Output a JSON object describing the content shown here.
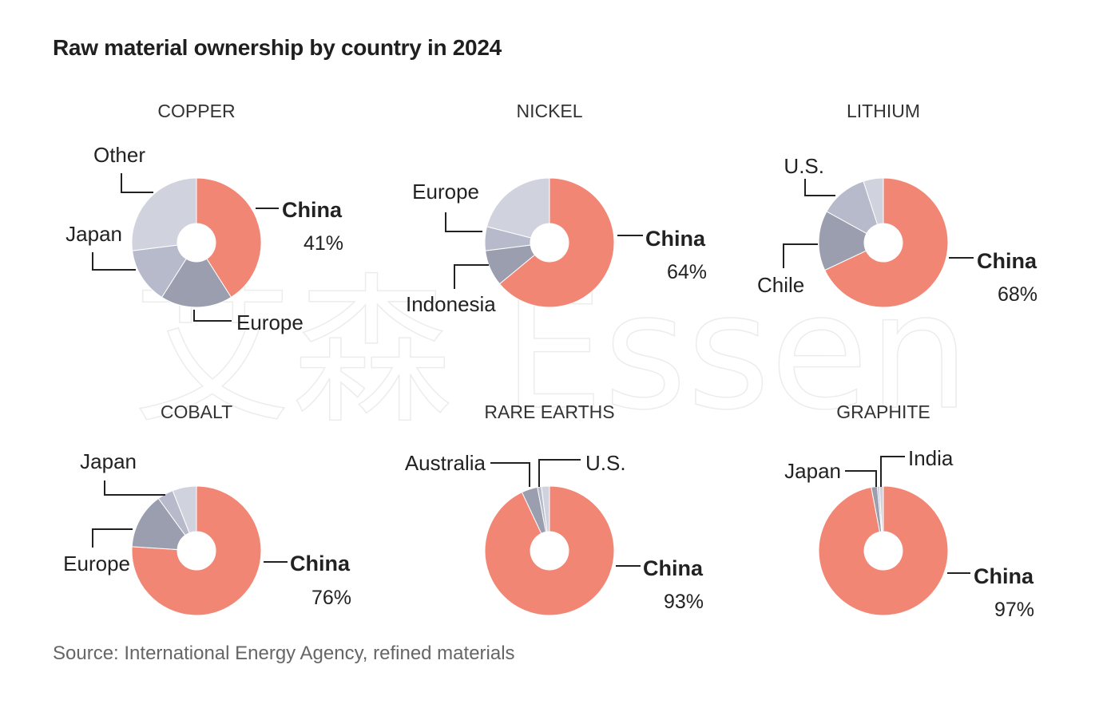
{
  "title": "Raw material ownership by country in 2024",
  "source": "Source: International Energy Agency, refined materials",
  "watermark": "艾森 Essen",
  "colors": {
    "china": "#f28675",
    "europe": "#9a9eae",
    "japan": "#b7bacb",
    "other": "#d0d3dd",
    "line": "#222222"
  },
  "chart_data": [
    {
      "type": "pie",
      "title": "COPPER",
      "series": [
        {
          "name": "China",
          "value": 41,
          "label": "41%",
          "color": "#f28675"
        },
        {
          "name": "Europe",
          "value": 18,
          "color": "#9a9eae"
        },
        {
          "name": "Japan",
          "value": 14,
          "color": "#b7bacb"
        },
        {
          "name": "Other",
          "value": 27,
          "color": "#d0d3dd"
        }
      ]
    },
    {
      "type": "pie",
      "title": "NICKEL",
      "series": [
        {
          "name": "China",
          "value": 64,
          "label": "64%",
          "color": "#f28675"
        },
        {
          "name": "Indonesia",
          "value": 9,
          "color": "#9a9eae"
        },
        {
          "name": "Europe",
          "value": 6,
          "color": "#b7bacb"
        },
        {
          "name": "",
          "value": 21,
          "color": "#d0d3dd"
        }
      ]
    },
    {
      "type": "pie",
      "title": "LITHIUM",
      "series": [
        {
          "name": "China",
          "value": 68,
          "label": "68%",
          "color": "#f28675"
        },
        {
          "name": "Chile",
          "value": 15,
          "color": "#9a9eae"
        },
        {
          "name": "U.S.",
          "value": 12,
          "color": "#b7bacb"
        },
        {
          "name": "",
          "value": 5,
          "color": "#d0d3dd"
        }
      ]
    },
    {
      "type": "pie",
      "title": "COBALT",
      "series": [
        {
          "name": "China",
          "value": 76,
          "label": "76%",
          "color": "#f28675"
        },
        {
          "name": "Europe",
          "value": 14,
          "color": "#9a9eae"
        },
        {
          "name": "Japan",
          "value": 4,
          "color": "#b7bacb"
        },
        {
          "name": "",
          "value": 6,
          "color": "#d0d3dd"
        }
      ]
    },
    {
      "type": "pie",
      "title": "RARE EARTHS",
      "series": [
        {
          "name": "China",
          "value": 93,
          "label": "93%",
          "color": "#f28675"
        },
        {
          "name": "Australia",
          "value": 4,
          "color": "#9a9eae"
        },
        {
          "name": "",
          "value": 1,
          "color": "#b7bacb"
        },
        {
          "name": "U.S.",
          "value": 2,
          "color": "#d0d3dd"
        }
      ]
    },
    {
      "type": "pie",
      "title": "GRAPHITE",
      "series": [
        {
          "name": "China",
          "value": 97,
          "label": "97%",
          "color": "#f28675"
        },
        {
          "name": "Japan",
          "value": 1.5,
          "color": "#9a9eae"
        },
        {
          "name": "",
          "value": 0.5,
          "color": "#b7bacb"
        },
        {
          "name": "India",
          "value": 1,
          "color": "#d0d3dd"
        }
      ]
    }
  ]
}
